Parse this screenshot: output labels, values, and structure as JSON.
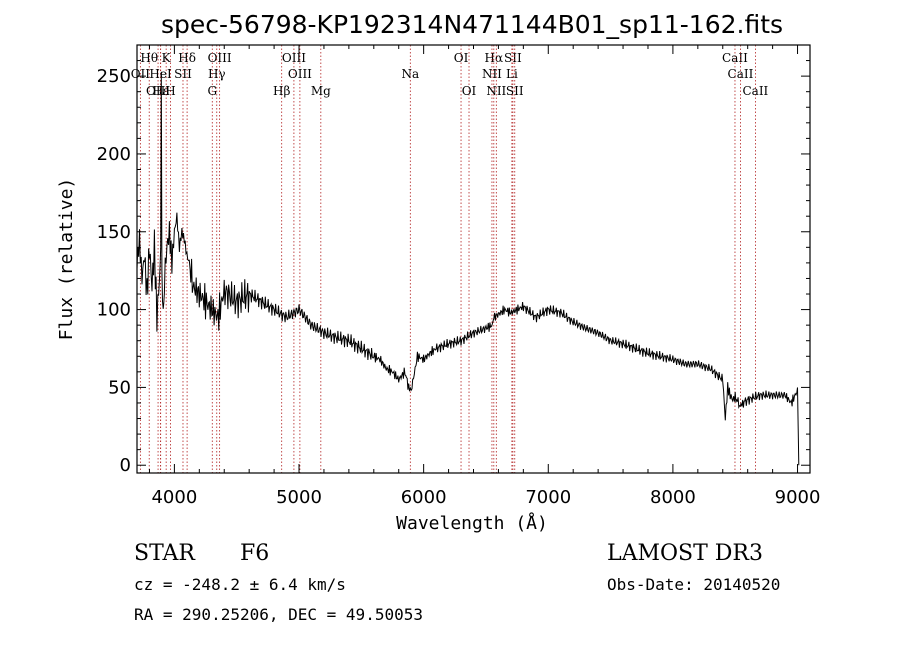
{
  "chart_data": {
    "type": "line",
    "title": "spec-56798-KP192314N471144B01_sp11-162.fits",
    "xlabel": "Wavelength (Å)",
    "ylabel": "Flux (relative)",
    "xlim": [
      3700,
      9100
    ],
    "ylim": [
      -5,
      270
    ],
    "xticks": [
      4000,
      5000,
      6000,
      7000,
      8000,
      9000
    ],
    "yticks": [
      0,
      50,
      100,
      150,
      200,
      250
    ],
    "grid": false,
    "series": [
      {
        "name": "flux",
        "x": [
          3700,
          3720,
          3740,
          3760,
          3780,
          3800,
          3820,
          3840,
          3860,
          3880,
          3890,
          3895,
          3900,
          3910,
          3920,
          3940,
          3960,
          3980,
          4000,
          4020,
          4040,
          4060,
          4080,
          4100,
          4120,
          4150,
          4200,
          4250,
          4300,
          4350,
          4400,
          4500,
          4600,
          4700,
          4800,
          4900,
          5000,
          5100,
          5200,
          5300,
          5400,
          5500,
          5600,
          5650,
          5700,
          5750,
          5800,
          5850,
          5880,
          5900,
          5950,
          6000,
          6050,
          6100,
          6200,
          6300,
          6400,
          6500,
          6550,
          6563,
          6600,
          6650,
          6700,
          6750,
          6800,
          6900,
          7000,
          7100,
          7200,
          7300,
          7400,
          7500,
          7600,
          7700,
          7800,
          7900,
          8000,
          8100,
          8200,
          8300,
          8400,
          8420,
          8440,
          8460,
          8480,
          8500,
          8540,
          8560,
          8600,
          8700,
          8800,
          8900,
          8950,
          9000,
          9010
        ],
        "y": [
          130,
          145,
          120,
          135,
          110,
          140,
          115,
          140,
          95,
          120,
          130,
          250,
          115,
          100,
          120,
          140,
          150,
          130,
          150,
          160,
          140,
          150,
          145,
          135,
          130,
          115,
          110,
          105,
          100,
          95,
          112,
          105,
          110,
          105,
          100,
          95,
          100,
          90,
          85,
          82,
          80,
          75,
          70,
          68,
          62,
          60,
          55,
          60,
          50,
          48,
          70,
          68,
          72,
          75,
          78,
          80,
          85,
          88,
          90,
          95,
          97,
          100,
          98,
          100,
          102,
          95,
          100,
          98,
          92,
          88,
          85,
          80,
          78,
          75,
          72,
          70,
          68,
          65,
          65,
          62,
          55,
          30,
          50,
          45,
          42,
          44,
          38,
          40,
          42,
          45,
          45,
          45,
          40,
          48,
          0
        ]
      }
    ],
    "spectral_lines": [
      {
        "label": "Hθ",
        "wave": 3798,
        "row": 1
      },
      {
        "label": "OII",
        "wave": 3727,
        "row": 2
      },
      {
        "label": "OIII",
        "wave": 3869,
        "row": 3
      },
      {
        "label": "Hε",
        "wave": 3890,
        "row": 3
      },
      {
        "label": "K",
        "wave": 3934,
        "row": 1
      },
      {
        "label": "HeI",
        "wave": 3889,
        "row": 2
      },
      {
        "label": "H",
        "wave": 3969,
        "row": 3
      },
      {
        "label": "SII",
        "wave": 4069,
        "row": 2
      },
      {
        "label": "Hδ",
        "wave": 4102,
        "row": 1
      },
      {
        "label": "OIII",
        "wave": 4363,
        "row": 1
      },
      {
        "label": "Hγ",
        "wave": 4340,
        "row": 2
      },
      {
        "label": "G",
        "wave": 4304,
        "row": 3
      },
      {
        "label": "OIII",
        "wave": 4959,
        "row": 1
      },
      {
        "label": "OIII",
        "wave": 5007,
        "row": 2
      },
      {
        "label": "Hβ",
        "wave": 4861,
        "row": 3
      },
      {
        "label": "Mg",
        "wave": 5175,
        "row": 3
      },
      {
        "label": "Na",
        "wave": 5893,
        "row": 2
      },
      {
        "label": "OI",
        "wave": 6300,
        "row": 1
      },
      {
        "label": "OI",
        "wave": 6364,
        "row": 3
      },
      {
        "label": "Hα",
        "wave": 6563,
        "row": 1
      },
      {
        "label": "SII",
        "wave": 6716,
        "row": 1
      },
      {
        "label": "NII",
        "wave": 6548,
        "row": 2
      },
      {
        "label": "Li",
        "wave": 6708,
        "row": 2
      },
      {
        "label": "NII",
        "wave": 6583,
        "row": 3
      },
      {
        "label": "SII",
        "wave": 6731,
        "row": 3
      },
      {
        "label": "CaII",
        "wave": 8498,
        "row": 1
      },
      {
        "label": "CaII",
        "wave": 8542,
        "row": 2
      },
      {
        "label": "CaII",
        "wave": 8662,
        "row": 3
      }
    ]
  },
  "footer": {
    "object_class": "STAR",
    "subclass": "F6",
    "survey": "LAMOST DR3",
    "redshift": "cz = -248.2 ± 6.4 km/s",
    "obs_date": "Obs-Date: 20140520",
    "coords": "RA = 290.25206, DEC =  49.50053"
  },
  "colors": {
    "line_marker": "#b22222",
    "spectrum": "#000000"
  }
}
